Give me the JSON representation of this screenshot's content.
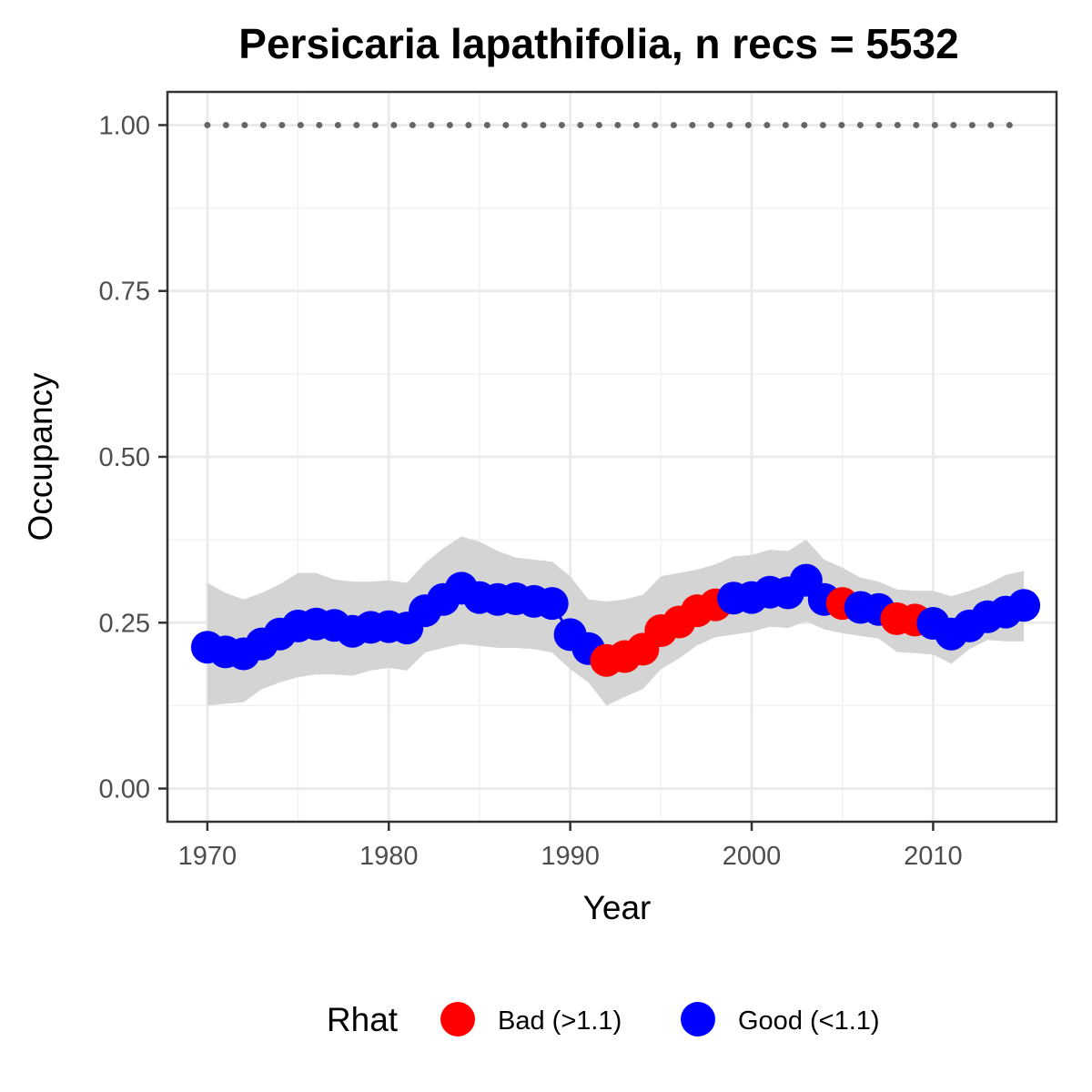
{
  "chart_data": {
    "type": "line",
    "title": "Persicaria lapathifolia, n recs = 5532",
    "xlabel": "Year",
    "ylabel": "Occupancy",
    "xlim": [
      1967.8,
      2016.8
    ],
    "ylim": [
      -0.05,
      1.05
    ],
    "x_ticks": [
      1970,
      1980,
      1990,
      2000,
      2010
    ],
    "y_ticks": [
      0.0,
      0.25,
      0.5,
      0.75,
      1.0
    ],
    "y_tick_labels": [
      "0.00",
      "0.25",
      "0.50",
      "0.75",
      "1.00"
    ],
    "grid": true,
    "legend": {
      "title": "Rhat",
      "position": "bottom",
      "entries": [
        {
          "label": "Bad (>1.1)",
          "color": "#ff0000"
        },
        {
          "label": "Good (<1.1)",
          "color": "#0000ff"
        }
      ]
    },
    "reference_line": {
      "y": 1.0,
      "style": "dotted",
      "color": "#666666"
    },
    "ribbon_color": "#d4d4d4",
    "x": [
      1970,
      1971,
      1972,
      1973,
      1974,
      1975,
      1976,
      1977,
      1978,
      1979,
      1980,
      1981,
      1982,
      1983,
      1984,
      1985,
      1986,
      1987,
      1988,
      1989,
      1990,
      1991,
      1992,
      1993,
      1994,
      1995,
      1996,
      1997,
      1998,
      1999,
      2000,
      2001,
      2002,
      2003,
      2004,
      2005,
      2006,
      2007,
      2008,
      2009,
      2010,
      2011,
      2012,
      2013,
      2014,
      2015
    ],
    "mean": [
      0.213,
      0.206,
      0.203,
      0.218,
      0.233,
      0.245,
      0.248,
      0.246,
      0.237,
      0.243,
      0.244,
      0.242,
      0.268,
      0.285,
      0.302,
      0.288,
      0.285,
      0.286,
      0.282,
      0.279,
      0.232,
      0.211,
      0.193,
      0.199,
      0.21,
      0.238,
      0.251,
      0.268,
      0.277,
      0.287,
      0.288,
      0.296,
      0.295,
      0.314,
      0.285,
      0.279,
      0.273,
      0.27,
      0.256,
      0.254,
      0.249,
      0.233,
      0.245,
      0.259,
      0.266,
      0.276
    ],
    "lower": [
      0.125,
      0.128,
      0.13,
      0.15,
      0.16,
      0.168,
      0.172,
      0.172,
      0.17,
      0.178,
      0.182,
      0.178,
      0.205,
      0.212,
      0.218,
      0.215,
      0.212,
      0.212,
      0.21,
      0.205,
      0.18,
      0.16,
      0.125,
      0.138,
      0.15,
      0.18,
      0.196,
      0.216,
      0.228,
      0.232,
      0.236,
      0.244,
      0.242,
      0.252,
      0.24,
      0.234,
      0.23,
      0.226,
      0.206,
      0.204,
      0.202,
      0.188,
      0.21,
      0.224,
      0.222,
      0.222
    ],
    "upper": [
      0.31,
      0.295,
      0.285,
      0.295,
      0.308,
      0.325,
      0.325,
      0.315,
      0.312,
      0.312,
      0.314,
      0.31,
      0.34,
      0.362,
      0.38,
      0.372,
      0.358,
      0.348,
      0.345,
      0.342,
      0.32,
      0.285,
      0.282,
      0.285,
      0.292,
      0.32,
      0.325,
      0.33,
      0.338,
      0.35,
      0.352,
      0.36,
      0.358,
      0.375,
      0.345,
      0.333,
      0.318,
      0.312,
      0.3,
      0.298,
      0.298,
      0.29,
      0.298,
      0.308,
      0.322,
      0.328
    ],
    "rhat": [
      "Good",
      "Good",
      "Good",
      "Good",
      "Good",
      "Good",
      "Good",
      "Good",
      "Good",
      "Good",
      "Good",
      "Good",
      "Good",
      "Good",
      "Good",
      "Good",
      "Good",
      "Good",
      "Good",
      "Good",
      "Good",
      "Good",
      "Bad",
      "Bad",
      "Bad",
      "Bad",
      "Bad",
      "Bad",
      "Bad",
      "Good",
      "Good",
      "Good",
      "Good",
      "Good",
      "Good",
      "Bad",
      "Good",
      "Good",
      "Bad",
      "Bad",
      "Good",
      "Good",
      "Good",
      "Good",
      "Good",
      "Good"
    ]
  }
}
